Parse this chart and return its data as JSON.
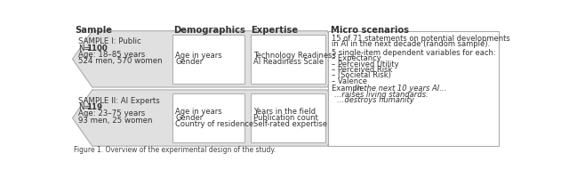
{
  "title_row": [
    "Sample",
    "Demographics",
    "Expertise",
    "Micro scenarios"
  ],
  "sample1_text": [
    "SAMPLE I: Public",
    "N=",
    "1100",
    "Age: 18–85 years",
    "524 men, 570 women"
  ],
  "sample2_text": [
    "SAMPLE II: AI Experts",
    "N=",
    "119",
    "Age: 23–75 years",
    "93 men, 25 women"
  ],
  "demo1_text": [
    "Age in years",
    "Gender"
  ],
  "demo2_text": [
    "Age in years",
    "Gender",
    "Country of residence"
  ],
  "expert1_text": [
    "Technology Readiness",
    "AI Readiness Scale"
  ],
  "expert2_text": [
    "Years in the field",
    "Publication count",
    "Self-rated expertise"
  ],
  "micro_lines": [
    "15 of 71 statements on potential developments",
    "in AI in the next decade (random sample).",
    "",
    "5 single-item dependent variables for each:",
    "– Expectancy",
    "– Perceived Utility",
    "– Perceived Risk",
    "– (Societal Risk)",
    "– Valence",
    "",
    "Example: "
  ],
  "micro_example_italic": "In the next 10 years AI...",
  "micro_example_lines_italic": [
    "…raises living standards.",
    "…destroys humanity"
  ],
  "bg_color": "#ffffff",
  "arrow_fill": "#e0e0e0",
  "arrow_edge": "#aaaaaa",
  "box_fill": "#ffffff",
  "box_edge": "#aaaaaa",
  "text_dark": "#333333",
  "text_light": "#666666",
  "caption": "Figure 1. Overview of the experimental design of the study."
}
